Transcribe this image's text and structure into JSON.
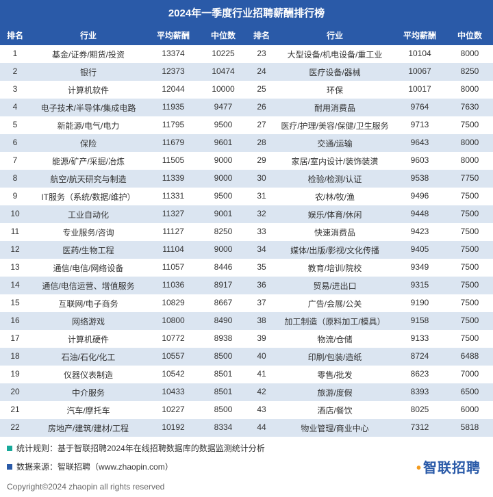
{
  "title": "2024年一季度行业招聘薪酬排行榜",
  "columns": {
    "rank": "排名",
    "industry": "行业",
    "avg": "平均薪酬",
    "median": "中位数"
  },
  "left": [
    {
      "rank": "1",
      "industry": "基金/证券/期货/投资",
      "avg": "13374",
      "median": "10225"
    },
    {
      "rank": "2",
      "industry": "银行",
      "avg": "12373",
      "median": "10474"
    },
    {
      "rank": "3",
      "industry": "计算机软件",
      "avg": "12044",
      "median": "10000"
    },
    {
      "rank": "4",
      "industry": "电子技术/半导体/集成电路",
      "avg": "11935",
      "median": "9477"
    },
    {
      "rank": "5",
      "industry": "新能源/电气/电力",
      "avg": "11795",
      "median": "9500"
    },
    {
      "rank": "6",
      "industry": "保险",
      "avg": "11679",
      "median": "9601"
    },
    {
      "rank": "7",
      "industry": "能源/矿产/采掘/冶炼",
      "avg": "11505",
      "median": "9000"
    },
    {
      "rank": "8",
      "industry": "航空/航天研究与制造",
      "avg": "11339",
      "median": "9000"
    },
    {
      "rank": "9",
      "industry": "IT服务（系统/数据/维护）",
      "avg": "11331",
      "median": "9500"
    },
    {
      "rank": "10",
      "industry": "工业自动化",
      "avg": "11327",
      "median": "9001"
    },
    {
      "rank": "11",
      "industry": "专业服务/咨询",
      "avg": "11127",
      "median": "8250"
    },
    {
      "rank": "12",
      "industry": "医药/生物工程",
      "avg": "11104",
      "median": "9000"
    },
    {
      "rank": "13",
      "industry": "通信/电信/网络设备",
      "avg": "11057",
      "median": "8446"
    },
    {
      "rank": "14",
      "industry": "通信/电信运营、增值服务",
      "avg": "11036",
      "median": "8917"
    },
    {
      "rank": "15",
      "industry": "互联网/电子商务",
      "avg": "10829",
      "median": "8667"
    },
    {
      "rank": "16",
      "industry": "网络游戏",
      "avg": "10800",
      "median": "8490"
    },
    {
      "rank": "17",
      "industry": "计算机硬件",
      "avg": "10772",
      "median": "8938"
    },
    {
      "rank": "18",
      "industry": "石油/石化/化工",
      "avg": "10557",
      "median": "8500"
    },
    {
      "rank": "19",
      "industry": "仪器仪表制造",
      "avg": "10542",
      "median": "8501"
    },
    {
      "rank": "20",
      "industry": "中介服务",
      "avg": "10433",
      "median": "8501"
    },
    {
      "rank": "21",
      "industry": "汽车/摩托车",
      "avg": "10227",
      "median": "8500"
    },
    {
      "rank": "22",
      "industry": "房地产/建筑/建材/工程",
      "avg": "10192",
      "median": "8334"
    }
  ],
  "right": [
    {
      "rank": "23",
      "industry": "大型设备/机电设备/重工业",
      "avg": "10104",
      "median": "8000"
    },
    {
      "rank": "24",
      "industry": "医疗设备/器械",
      "avg": "10067",
      "median": "8250"
    },
    {
      "rank": "25",
      "industry": "环保",
      "avg": "10017",
      "median": "8000"
    },
    {
      "rank": "26",
      "industry": "耐用消费品",
      "avg": "9764",
      "median": "7630"
    },
    {
      "rank": "27",
      "industry": "医疗/护理/美容/保健/卫生服务",
      "avg": "9713",
      "median": "7500"
    },
    {
      "rank": "28",
      "industry": "交通/运输",
      "avg": "9643",
      "median": "8000"
    },
    {
      "rank": "29",
      "industry": "家居/室内设计/装饰装潢",
      "avg": "9603",
      "median": "8000"
    },
    {
      "rank": "30",
      "industry": "检验/检测/认证",
      "avg": "9538",
      "median": "7750"
    },
    {
      "rank": "31",
      "industry": "农/林/牧/渔",
      "avg": "9496",
      "median": "7500"
    },
    {
      "rank": "32",
      "industry": "娱乐/体育/休闲",
      "avg": "9448",
      "median": "7500"
    },
    {
      "rank": "33",
      "industry": "快速消费品",
      "avg": "9423",
      "median": "7500"
    },
    {
      "rank": "34",
      "industry": "媒体/出版/影视/文化传播",
      "avg": "9405",
      "median": "7500"
    },
    {
      "rank": "35",
      "industry": "教育/培训/院校",
      "avg": "9349",
      "median": "7500"
    },
    {
      "rank": "36",
      "industry": "贸易/进出口",
      "avg": "9315",
      "median": "7500"
    },
    {
      "rank": "37",
      "industry": "广告/会展/公关",
      "avg": "9190",
      "median": "7500"
    },
    {
      "rank": "38",
      "industry": "加工制造（原料加工/模具）",
      "avg": "9158",
      "median": "7500"
    },
    {
      "rank": "39",
      "industry": "物流/仓储",
      "avg": "9133",
      "median": "7500"
    },
    {
      "rank": "40",
      "industry": "印刷/包装/造纸",
      "avg": "8724",
      "median": "6488"
    },
    {
      "rank": "41",
      "industry": "零售/批发",
      "avg": "8623",
      "median": "7000"
    },
    {
      "rank": "42",
      "industry": "旅游/度假",
      "avg": "8393",
      "median": "6500"
    },
    {
      "rank": "43",
      "industry": "酒店/餐饮",
      "avg": "8025",
      "median": "6000"
    },
    {
      "rank": "44",
      "industry": "物业管理/商业中心",
      "avg": "7312",
      "median": "5818"
    }
  ],
  "footer": {
    "stat_rule": "统计规则：基于智联招聘2024年在线招聘数据库的数据监测统计分析",
    "data_source": "数据来源：智联招聘（www.zhaopin.com）",
    "logo_text": "智联招聘",
    "copyright": "Copyright©2024 zhaopin all rights reserved"
  },
  "colors": {
    "header_bg": "#2a5aa8",
    "row_even_bg": "#dbe5f1",
    "row_odd_bg": "#ffffff",
    "marker_teal": "#17a99a",
    "marker_blue": "#2a5aa8",
    "logo_orange": "#f39b1f"
  }
}
